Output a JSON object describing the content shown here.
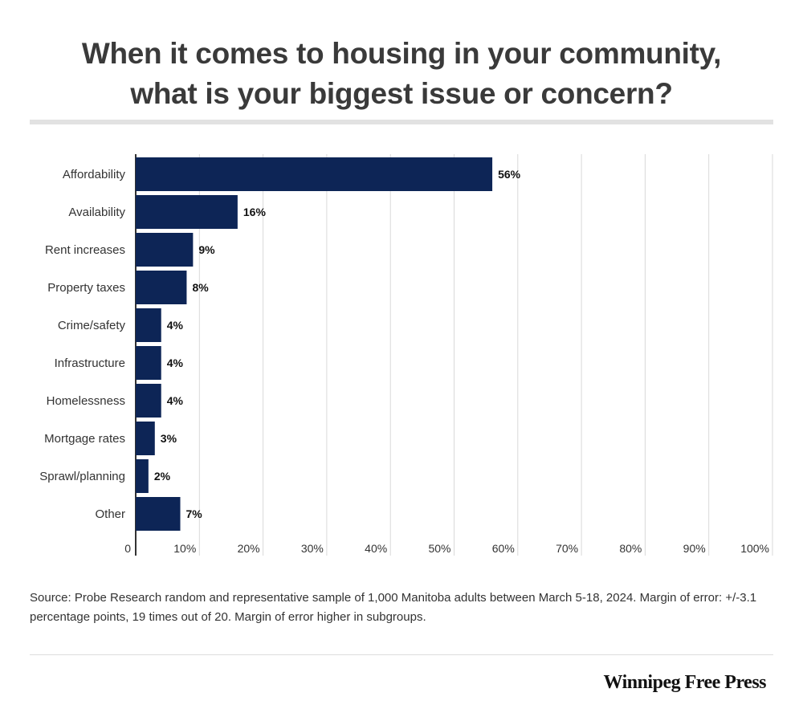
{
  "title": {
    "line1": "When it comes to housing in your community,",
    "line2": "what is your biggest issue or concern?"
  },
  "chart_data": {
    "type": "bar",
    "orientation": "horizontal",
    "title": "When it comes to housing in your community, what is your biggest issue or concern?",
    "categories": [
      "Affordability",
      "Availability",
      "Rent increases",
      "Property taxes",
      "Crime/safety",
      "Infrastructure",
      "Homelessness",
      "Mortgage rates",
      "Sprawl/planning",
      "Other"
    ],
    "values": [
      56,
      16,
      9,
      8,
      4,
      4,
      4,
      3,
      2,
      7
    ],
    "value_labels": [
      "56%",
      "16%",
      "9%",
      "8%",
      "4%",
      "4%",
      "4%",
      "3%",
      "2%",
      "7%"
    ],
    "xlim": [
      0,
      100
    ],
    "xticks": [
      0,
      10,
      20,
      30,
      40,
      50,
      60,
      70,
      80,
      90,
      100
    ],
    "xtick_labels": [
      "0",
      "10%",
      "20%",
      "30%",
      "40%",
      "50%",
      "60%",
      "70%",
      "80%",
      "90%",
      "100%"
    ],
    "grid": true,
    "bar_color": "#0d2556",
    "grid_color": "#d9d9d9",
    "axis_color": "#333333"
  },
  "source": "Source: Probe Research random and representative sample of 1,000 Manitoba adults between March 5-18, 2024. Margin of error: +/-3.1 percentage points, 19 times out of 20. Margin of error higher in subgroups.",
  "brand": "Winnipeg Free Press"
}
